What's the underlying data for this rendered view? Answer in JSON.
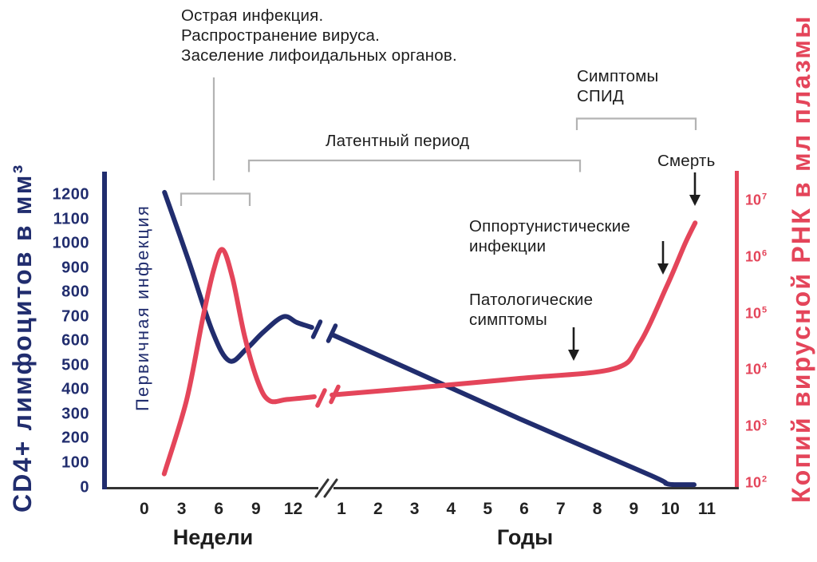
{
  "annotations": {
    "acute_lines": [
      "Острая инфекция.",
      "Распространение вируса.",
      "Заселение лифоидальных органов."
    ],
    "latent": "Латентный период",
    "aids_lines": [
      "Симптомы",
      "СПИД"
    ],
    "death": "Смерть",
    "opportunistic_lines": [
      "Оппортунистические",
      "инфекции"
    ],
    "pathological_lines": [
      "Патологические",
      "симптомы"
    ],
    "primary_infection": "Первичная инфекция"
  },
  "colors": {
    "cd4_series": "#212d6e",
    "rna_series": "#e4455a",
    "bracket_gray": "#b3b3b3",
    "annotation_ink": "#1d1d1d",
    "x_axis": "#333333"
  },
  "chart_data": {
    "type": "line",
    "title": "",
    "grid": false,
    "legend": "none",
    "x_axis": {
      "broken_scale": true,
      "segments": [
        {
          "label": "Недели",
          "unit": "weeks",
          "ticks": [
            0,
            3,
            6,
            9,
            12
          ]
        },
        {
          "label": "Годы",
          "unit": "years",
          "ticks": [
            1,
            2,
            3,
            4,
            5,
            6,
            7,
            8,
            9,
            10,
            11
          ]
        }
      ]
    },
    "y_left": {
      "label": "CD4+ лимфоцитов в мм³",
      "scale": "linear",
      "range": [
        0,
        1260
      ],
      "ticks": [
        1200,
        1100,
        1000,
        900,
        800,
        700,
        600,
        500,
        400,
        300,
        200,
        100,
        0
      ]
    },
    "y_right": {
      "label": "Копий вирусной РНК в мл плазмы",
      "scale": "log",
      "tick_base": "10",
      "tick_exponents": [
        7,
        6,
        5,
        4,
        3,
        2
      ]
    },
    "series": [
      {
        "name": "CD4+ лимфоциты",
        "axis": "left",
        "color": "#212d6e",
        "points_weeks": [
          [
            1.63,
            1210
          ],
          [
            3.6,
            925
          ],
          [
            5.5,
            638
          ],
          [
            6.85,
            519
          ],
          [
            8.2,
            566
          ],
          [
            9.6,
            637
          ],
          [
            11.2,
            700
          ],
          [
            12.3,
            676
          ],
          [
            13.5,
            656
          ]
        ],
        "points_years": [
          [
            0.78,
            624
          ],
          [
            2.79,
            489
          ],
          [
            5.85,
            283
          ],
          [
            9.45,
            50
          ],
          [
            9.9,
            15
          ],
          [
            10.25,
            11
          ],
          [
            10.65,
            11
          ]
        ]
      },
      {
        "name": "Вирусная РНК",
        "axis": "right",
        "color": "#e4455a",
        "points_weeks": [
          [
            1.6,
            145
          ],
          [
            3.4,
            2900
          ],
          [
            4.7,
            80000
          ],
          [
            5.6,
            600000
          ],
          [
            6.3,
            1350000
          ],
          [
            7.1,
            430000
          ],
          [
            8.1,
            38000
          ],
          [
            9.2,
            5800
          ],
          [
            10.1,
            2850
          ],
          [
            11.5,
            3000
          ],
          [
            13.7,
            3350
          ]
        ],
        "points_years": [
          [
            0.74,
            3600
          ],
          [
            3.0,
            4800
          ],
          [
            5.9,
            7100
          ],
          [
            8.45,
            10500
          ],
          [
            9.15,
            29000
          ],
          [
            9.9,
            300000
          ],
          [
            10.4,
            1700000
          ],
          [
            10.68,
            4000000
          ]
        ]
      }
    ]
  }
}
